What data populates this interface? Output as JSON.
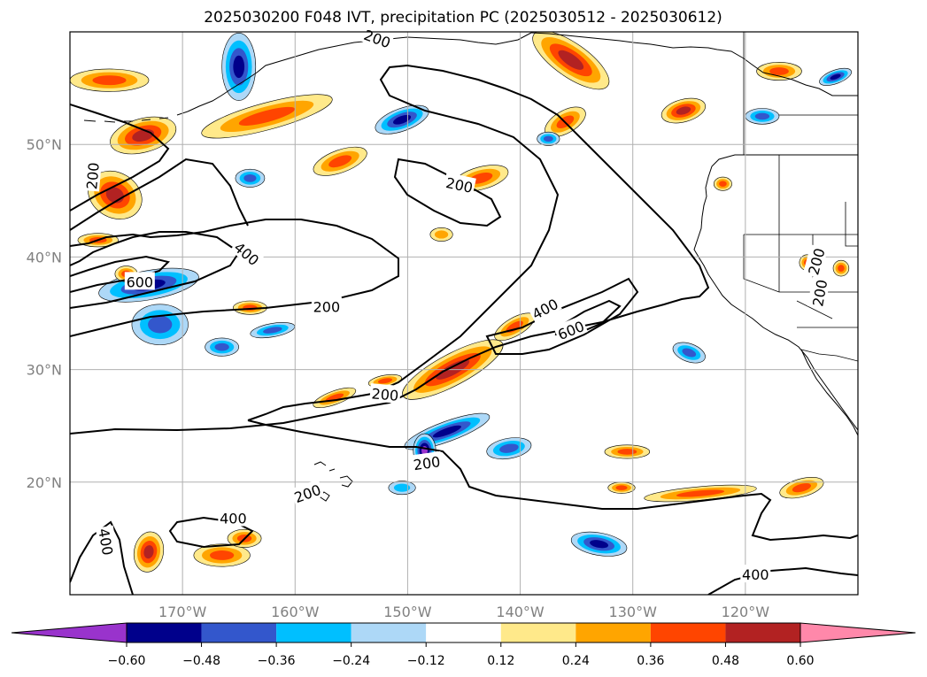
{
  "chart_data": {
    "type": "heatmap",
    "title": "2025030200 F048 IVT, precipitation PC (2025030512 - 2025030612)",
    "map": {
      "lon_range": [
        -180,
        -110
      ],
      "lat_range": [
        10,
        60
      ],
      "grid": true,
      "lon_ticks": [
        -170,
        -160,
        -150,
        -140,
        -130,
        -120
      ],
      "lon_tick_labels": [
        "170°W",
        "160°W",
        "150°W",
        "140°W",
        "130°W",
        "120°W"
      ],
      "lat_ticks": [
        20,
        30,
        40,
        50
      ],
      "lat_tick_labels": [
        "20°N",
        "30°N",
        "40°N",
        "50°N"
      ]
    },
    "ivt_contours": {
      "levels": [
        200,
        400,
        600
      ],
      "labels": [
        {
          "text": "200",
          "lon": -148.3,
          "lat": 21.7,
          "angle": -8
        },
        {
          "text": "200",
          "lon": -145.4,
          "lat": 46.4,
          "angle": 12
        },
        {
          "text": "200",
          "lon": -157.2,
          "lat": 35.6,
          "angle": 0
        },
        {
          "text": "200",
          "lon": -178.0,
          "lat": 47.2,
          "angle": -85
        },
        {
          "text": "200",
          "lon": -152.0,
          "lat": 27.8,
          "angle": 5
        },
        {
          "text": "200",
          "lon": -158.9,
          "lat": 19.0,
          "angle": -20
        },
        {
          "text": "200",
          "lon": -152.7,
          "lat": 59.4,
          "angle": 20
        },
        {
          "text": "200",
          "lon": -113.7,
          "lat": 39.6,
          "angle": -75
        },
        {
          "text": "200",
          "lon": -113.4,
          "lat": 36.8,
          "angle": -80
        },
        {
          "text": "400",
          "lon": -164.3,
          "lat": 40.3,
          "angle": 40
        },
        {
          "text": "400",
          "lon": -137.8,
          "lat": 35.4,
          "angle": -28
        },
        {
          "text": "400",
          "lon": -165.5,
          "lat": 16.8,
          "angle": 0
        },
        {
          "text": "400",
          "lon": -176.8,
          "lat": 14.7,
          "angle": 80
        },
        {
          "text": "400",
          "lon": -119.1,
          "lat": 11.8,
          "angle": 0
        },
        {
          "text": "600",
          "lon": -173.8,
          "lat": 37.8,
          "angle": 0
        },
        {
          "text": "600",
          "lon": -135.5,
          "lat": 33.5,
          "angle": -22
        }
      ]
    },
    "colorbar": {
      "levels": [
        -0.6,
        -0.48,
        -0.36,
        -0.24,
        -0.12,
        0.12,
        0.24,
        0.36,
        0.48,
        0.6
      ],
      "tick_labels": [
        "−0.60",
        "−0.48",
        "−0.36",
        "−0.24",
        "−0.12",
        "0.12",
        "0.24",
        "0.36",
        "0.48",
        "0.60"
      ],
      "colors": [
        "#9933cc",
        "#00008b",
        "#3357cc",
        "#00bfff",
        "#add8f7",
        "#ffffff",
        "#ffe98a",
        "#ffa500",
        "#ff4500",
        "#b22222",
        "#ff88aa"
      ],
      "extend": "both"
    },
    "precip_pc_regions": [
      {
        "lon": -176.0,
        "lat": 45.5,
        "r_lon": 2.5,
        "r_lat": 2.0,
        "angle": 30,
        "level": 0.48
      },
      {
        "lon": -173.5,
        "lat": 50.8,
        "r_lon": 3.0,
        "r_lat": 1.5,
        "angle": -15,
        "level": 0.48
      },
      {
        "lon": -176.5,
        "lat": 55.7,
        "r_lon": 3.5,
        "r_lat": 1.0,
        "angle": 0,
        "level": 0.36
      },
      {
        "lon": -165.0,
        "lat": 56.9,
        "r_lon": 1.5,
        "r_lat": 3.0,
        "angle": 0,
        "level": -0.48
      },
      {
        "lon": -162.5,
        "lat": 52.5,
        "r_lon": 6.0,
        "r_lat": 1.2,
        "angle": -15,
        "level": 0.36
      },
      {
        "lon": -156.0,
        "lat": 48.5,
        "r_lon": 2.5,
        "r_lat": 1.0,
        "angle": -20,
        "level": 0.36
      },
      {
        "lon": -150.5,
        "lat": 52.2,
        "r_lon": 2.5,
        "r_lat": 1.0,
        "angle": -20,
        "level": -0.48
      },
      {
        "lon": -143.5,
        "lat": 47.0,
        "r_lon": 2.5,
        "r_lat": 1.0,
        "angle": -15,
        "level": 0.36
      },
      {
        "lon": -136.0,
        "lat": 52.0,
        "r_lon": 2.0,
        "r_lat": 1.0,
        "angle": -30,
        "level": 0.36
      },
      {
        "lon": -173.0,
        "lat": 37.5,
        "r_lon": 4.5,
        "r_lat": 1.3,
        "angle": -10,
        "level": -0.48
      },
      {
        "lon": -172.0,
        "lat": 34.0,
        "r_lon": 2.5,
        "r_lat": 1.8,
        "angle": 0,
        "level": -0.36
      },
      {
        "lon": -146.0,
        "lat": 30.0,
        "r_lon": 5.0,
        "r_lat": 1.4,
        "angle": -28,
        "level": 0.48
      },
      {
        "lon": -140.5,
        "lat": 33.8,
        "r_lon": 2.0,
        "r_lat": 0.8,
        "angle": -30,
        "level": 0.36
      },
      {
        "lon": -146.5,
        "lat": 24.5,
        "r_lon": 4.0,
        "r_lat": 0.9,
        "angle": -20,
        "level": -0.48
      },
      {
        "lon": -148.5,
        "lat": 22.8,
        "r_lon": 1.0,
        "r_lat": 1.5,
        "angle": 0,
        "level": -0.6
      },
      {
        "lon": -141.0,
        "lat": 23.0,
        "r_lon": 2.0,
        "r_lat": 0.9,
        "angle": -10,
        "level": -0.36
      },
      {
        "lon": -133.0,
        "lat": 14.5,
        "r_lon": 2.5,
        "r_lat": 1.0,
        "angle": 10,
        "level": -0.48
      },
      {
        "lon": -124.0,
        "lat": 19.0,
        "r_lon": 5.0,
        "r_lat": 0.6,
        "angle": -5,
        "level": 0.36
      },
      {
        "lon": -115.0,
        "lat": 19.5,
        "r_lon": 2.0,
        "r_lat": 0.8,
        "angle": -15,
        "level": 0.36
      },
      {
        "lon": -130.5,
        "lat": 22.7,
        "r_lon": 2.0,
        "r_lat": 0.6,
        "angle": 0,
        "level": 0.36
      },
      {
        "lon": -173.0,
        "lat": 13.8,
        "r_lon": 1.3,
        "r_lat": 1.8,
        "angle": 10,
        "level": 0.48
      },
      {
        "lon": -166.5,
        "lat": 13.5,
        "r_lon": 2.5,
        "r_lat": 1.0,
        "angle": 0,
        "level": 0.36
      },
      {
        "lon": -164.5,
        "lat": 15.0,
        "r_lon": 1.5,
        "r_lat": 0.8,
        "angle": 0,
        "level": 0.36
      },
      {
        "lon": -125.5,
        "lat": 53.0,
        "r_lon": 2.0,
        "r_lat": 1.0,
        "angle": -15,
        "level": 0.48
      },
      {
        "lon": -117.0,
        "lat": 56.5,
        "r_lon": 2.0,
        "r_lat": 0.8,
        "angle": 0,
        "level": 0.36
      },
      {
        "lon": -112.0,
        "lat": 56.0,
        "r_lon": 1.5,
        "r_lat": 0.6,
        "angle": -20,
        "level": -0.48
      },
      {
        "lon": -135.5,
        "lat": 57.5,
        "r_lon": 4.0,
        "r_lat": 1.5,
        "angle": 35,
        "level": 0.48
      },
      {
        "lon": -152.0,
        "lat": 29.0,
        "r_lon": 1.5,
        "r_lat": 0.5,
        "angle": -10,
        "level": 0.36
      },
      {
        "lon": -164.0,
        "lat": 35.5,
        "r_lon": 1.5,
        "r_lat": 0.6,
        "angle": 0,
        "level": 0.36
      },
      {
        "lon": -166.5,
        "lat": 32.0,
        "r_lon": 1.5,
        "r_lat": 0.8,
        "angle": 0,
        "level": -0.36
      },
      {
        "lon": -156.5,
        "lat": 27.5,
        "r_lon": 2.0,
        "r_lat": 0.6,
        "angle": -20,
        "level": 0.36
      },
      {
        "lon": -177.5,
        "lat": 41.5,
        "r_lon": 1.8,
        "r_lat": 0.6,
        "angle": 0,
        "level": 0.36
      },
      {
        "lon": -175.0,
        "lat": 38.5,
        "r_lon": 1.0,
        "r_lat": 0.7,
        "angle": 0,
        "level": 0.36
      },
      {
        "lon": -162.0,
        "lat": 33.5,
        "r_lon": 2.0,
        "r_lat": 0.6,
        "angle": -10,
        "level": -0.36
      },
      {
        "lon": -164.0,
        "lat": 47.0,
        "r_lon": 1.3,
        "r_lat": 0.8,
        "angle": 0,
        "level": -0.36
      },
      {
        "lon": -118.5,
        "lat": 52.5,
        "r_lon": 1.5,
        "r_lat": 0.7,
        "angle": 0,
        "level": -0.36
      },
      {
        "lon": -125.0,
        "lat": 31.5,
        "r_lon": 1.5,
        "r_lat": 0.8,
        "angle": 20,
        "level": -0.36
      },
      {
        "lon": -122.0,
        "lat": 46.5,
        "r_lon": 0.8,
        "r_lat": 0.6,
        "angle": 0,
        "level": 0.36
      },
      {
        "lon": -114.5,
        "lat": 39.5,
        "r_lon": 0.7,
        "r_lat": 0.7,
        "angle": 0,
        "level": 0.36
      },
      {
        "lon": -111.5,
        "lat": 39.0,
        "r_lon": 0.7,
        "r_lat": 0.7,
        "angle": 0,
        "level": 0.36
      },
      {
        "lon": -150.5,
        "lat": 19.5,
        "r_lon": 1.2,
        "r_lat": 0.6,
        "angle": 0,
        "level": -0.24
      },
      {
        "lon": -131.0,
        "lat": 19.5,
        "r_lon": 1.2,
        "r_lat": 0.5,
        "angle": 0,
        "level": 0.36
      },
      {
        "lon": -137.5,
        "lat": 50.5,
        "r_lon": 1.0,
        "r_lat": 0.6,
        "angle": 0,
        "level": -0.36
      },
      {
        "lon": -147.0,
        "lat": 42.0,
        "r_lon": 1.0,
        "r_lat": 0.6,
        "angle": 0,
        "level": 0.24
      }
    ]
  }
}
